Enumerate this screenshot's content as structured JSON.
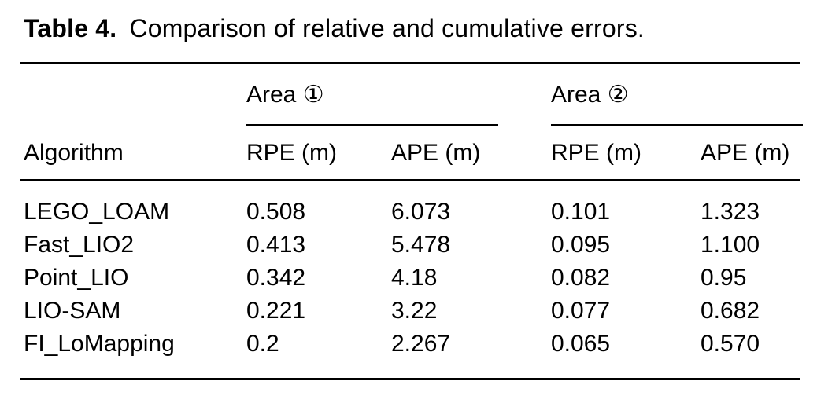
{
  "caption": {
    "label": "Table 4.",
    "text": "Comparison of relative and cumulative errors."
  },
  "table": {
    "algorithm_header": "Algorithm",
    "groups": [
      {
        "label": "Area ①",
        "columns": [
          "RPE (m)",
          "APE (m)"
        ]
      },
      {
        "label": "Area ②",
        "columns": [
          "RPE (m)",
          "APE (m)"
        ]
      }
    ],
    "rows": [
      {
        "algorithm": "LEGO_LOAM",
        "values": [
          "0.508",
          "6.073",
          "0.101",
          "1.323"
        ]
      },
      {
        "algorithm": "Fast_LIO2",
        "values": [
          "0.413",
          "5.478",
          "0.095",
          "1.100"
        ]
      },
      {
        "algorithm": "Point_LIO",
        "values": [
          "0.342",
          "4.18",
          "0.082",
          "0.95"
        ]
      },
      {
        "algorithm": "LIO-SAM",
        "values": [
          "0.221",
          "3.22",
          "0.077",
          "0.682"
        ]
      },
      {
        "algorithm": "FI_LoMapping",
        "values": [
          "0.2",
          "2.267",
          "0.065",
          "0.570"
        ]
      }
    ]
  },
  "colors": {
    "text": "#000000",
    "background": "#ffffff",
    "rule": "#000000"
  }
}
